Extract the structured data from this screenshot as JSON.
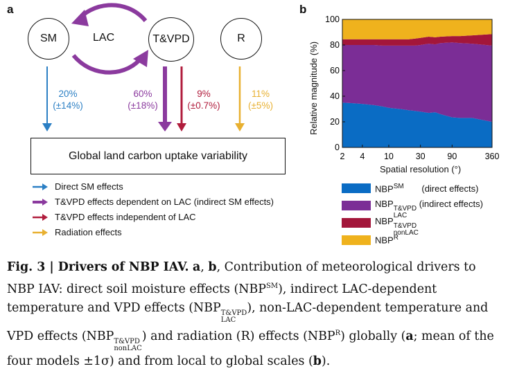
{
  "panel_a": {
    "letter": "a",
    "nodes": {
      "sm": "SM",
      "lac": "LAC",
      "tvpd": "T&VPD",
      "r": "R"
    },
    "effects": [
      {
        "pct": "20%",
        "err": "(±14%)",
        "color": "#2b7fc4"
      },
      {
        "pct": "60%",
        "err": "(±18%)",
        "color": "#8b3a9e"
      },
      {
        "pct": "9%",
        "err": "(±0.7%)",
        "color": "#b01c3c"
      },
      {
        "pct": "11%",
        "err": "(±5%)",
        "color": "#e8b030"
      }
    ],
    "outcome": "Global land carbon uptake variability",
    "legend": [
      {
        "label": "Direct SM effects",
        "color": "#2b7fc4"
      },
      {
        "label": "T&VPD effects dependent on LAC (indirect SM effects)",
        "color": "#8b3a9e"
      },
      {
        "label": "T&VPD effects independent of LAC",
        "color": "#b01c3c"
      },
      {
        "label": "Radiation effects",
        "color": "#e8b030"
      }
    ]
  },
  "chart_data": {
    "type": "area",
    "panel_letter": "b",
    "xlabel": "Spatial resolution (°)",
    "ylabel": "Relative magnitude (%)",
    "x_scale": "log",
    "x_ticks": [
      "2",
      "4",
      "10",
      "30",
      "90",
      "360"
    ],
    "y_ticks": [
      "0",
      "20",
      "40",
      "60",
      "80",
      "100"
    ],
    "ylim": [
      0,
      100
    ],
    "xlim": [
      2,
      360
    ],
    "x": [
      2,
      3,
      4,
      6,
      8,
      10,
      15,
      20,
      25,
      30,
      40,
      50,
      60,
      90,
      120,
      180,
      360
    ],
    "series": [
      {
        "name": "NBP^SM (direct effects)",
        "color": "#0a6cc4",
        "values": [
          35,
          34.5,
          34,
          33,
          32,
          31,
          30,
          29,
          28.5,
          28,
          27,
          27.5,
          26,
          23.5,
          23,
          23,
          20
        ]
      },
      {
        "name": "NBP^T&VPD_LAC (indirect effects)",
        "color": "#7b2d96",
        "values": [
          45,
          45.5,
          46,
          47,
          47.5,
          48.5,
          49.5,
          50.5,
          51,
          52,
          54,
          53,
          55.5,
          58.5,
          58.5,
          58,
          59.5
        ]
      },
      {
        "name": "NBP^T&VPD_nonLAC",
        "color": "#a3163a",
        "values": [
          4.5,
          4.5,
          4.5,
          4.5,
          5,
          5,
          5,
          5,
          5.5,
          5.5,
          5.5,
          5.5,
          5,
          5,
          5.5,
          6.5,
          9
        ]
      },
      {
        "name": "NBP^R",
        "color": "#efb21d",
        "values": [
          15.5,
          15.5,
          15.5,
          15.5,
          15.5,
          15.5,
          15.5,
          15.5,
          15,
          14.5,
          13.5,
          14,
          13.5,
          13,
          13,
          12.5,
          11.5
        ]
      }
    ],
    "legend": [
      {
        "main": "NBP",
        "sup": "SM",
        "sub": "",
        "note": "(direct effects)"
      },
      {
        "main": "NBP",
        "sup": "T&VPD",
        "sub": "LAC",
        "note": "(indirect effects)"
      },
      {
        "main": "NBP",
        "sup": "T&VPD",
        "sub": "nonLAC",
        "note": ""
      },
      {
        "main": "NBP",
        "sup": "R",
        "sub": "",
        "note": ""
      }
    ]
  },
  "caption": {
    "fig": "Fig. 3 | Drivers of NBP IAV.",
    "a": "a",
    "b": "b",
    "sep1": ",",
    "t1": " Contribution of meteorological drivers to NBP IAV: direct soil moisture effects (NBP",
    "sm": "SM",
    "t2": "), indirect LAC-dependent temperature and VPD effects (NBP",
    "tvpd1": "T&VPD",
    "lac": "LAC",
    "t3": "), non-LAC-dependent temperature and VPD effects (NBP",
    "tvpd2": "T&VPD",
    "nonlac": "nonLAC",
    "t4": ") and radiation (R) effects (NBP",
    "r": "R",
    "t5": ") globally (",
    "a2": "a",
    "t6": "; mean of the four models ±1σ) and from local to global scales (",
    "b2": "b",
    "t7": ")."
  }
}
